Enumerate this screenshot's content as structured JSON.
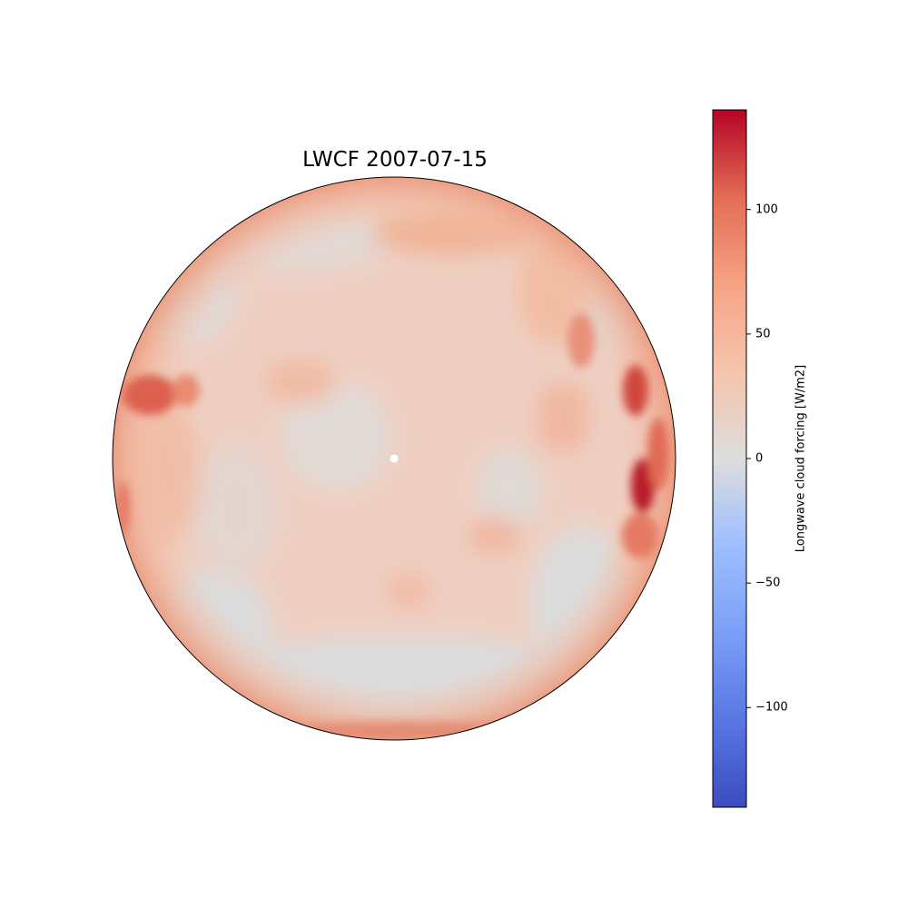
{
  "title": "LWCF 2007-07-15",
  "colorbar": {
    "label": "Longwave cloud forcing [W/m2]",
    "min": -140,
    "max": 140,
    "ticks": [
      {
        "value": 100,
        "label": "100"
      },
      {
        "value": 50,
        "label": "50"
      },
      {
        "value": 0,
        "label": "0"
      },
      {
        "value": -50,
        "label": "−50"
      },
      {
        "value": -100,
        "label": "−100"
      }
    ],
    "colormap": "coolwarm"
  },
  "map": {
    "projection": "polar stereographic",
    "pole_marker": "white dot"
  }
}
